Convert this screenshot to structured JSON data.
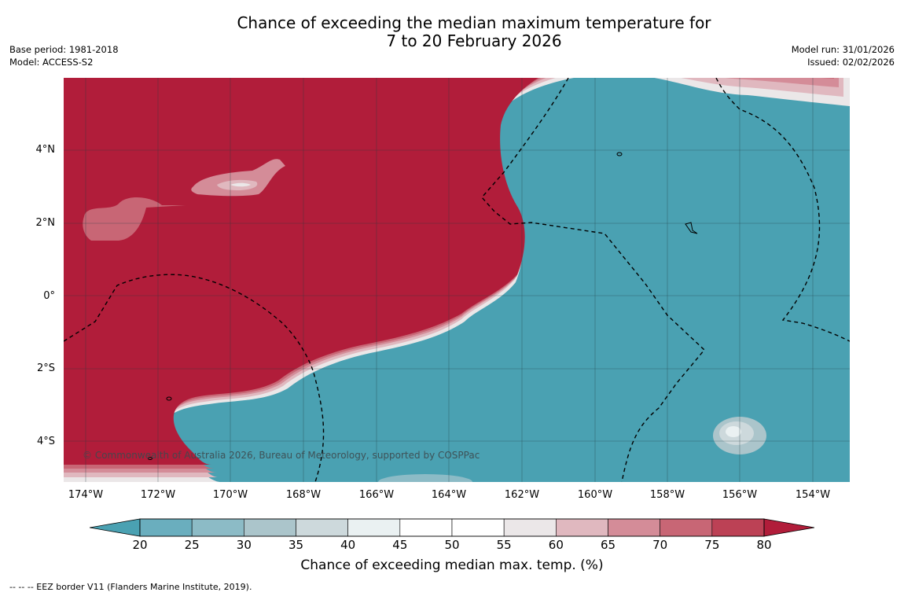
{
  "header": {
    "title_line1": "Chance of exceeding the median maximum temperature for",
    "title_line2": "7 to 20 February 2026",
    "base_period": "Base period: 1981-2018",
    "model": "Model: ACCESS-S2",
    "model_run": "Model run: 31/01/2026",
    "issued": "Issued: 02/02/2026"
  },
  "map": {
    "lat_labels": [
      "4°N",
      "2°N",
      "0°",
      "2°S",
      "4°S"
    ],
    "lon_labels": [
      "174°W",
      "172°W",
      "170°W",
      "168°W",
      "166°W",
      "164°W",
      "162°W",
      "160°W",
      "158°W",
      "156°W",
      "154°W"
    ],
    "copyright": "© Commonwealth of Australia 2026, Bureau of Meteorology, supported by COSPPac",
    "colors": {
      "warm": "#b11d3a",
      "cool": "#4aa1b2"
    }
  },
  "colorbar": {
    "ticks": [
      "20",
      "25",
      "30",
      "35",
      "40",
      "45",
      "50",
      "55",
      "60",
      "65",
      "70",
      "75",
      "80"
    ],
    "colors": [
      "#4aa1b2",
      "#6aaebe",
      "#8cbbc6",
      "#abc5cb",
      "#cdd9dc",
      "#eaf1f2",
      "#ffffff",
      "#ffffff",
      "#ebe7e8",
      "#e0b8bf",
      "#d48c98",
      "#c86675",
      "#bc4155",
      "#b11d3a"
    ],
    "label": "Chance of exceeding median max. temp. (%)"
  },
  "footnote": "--  --  -- EEZ border V11 (Flanders Marine Institute, 2019)."
}
